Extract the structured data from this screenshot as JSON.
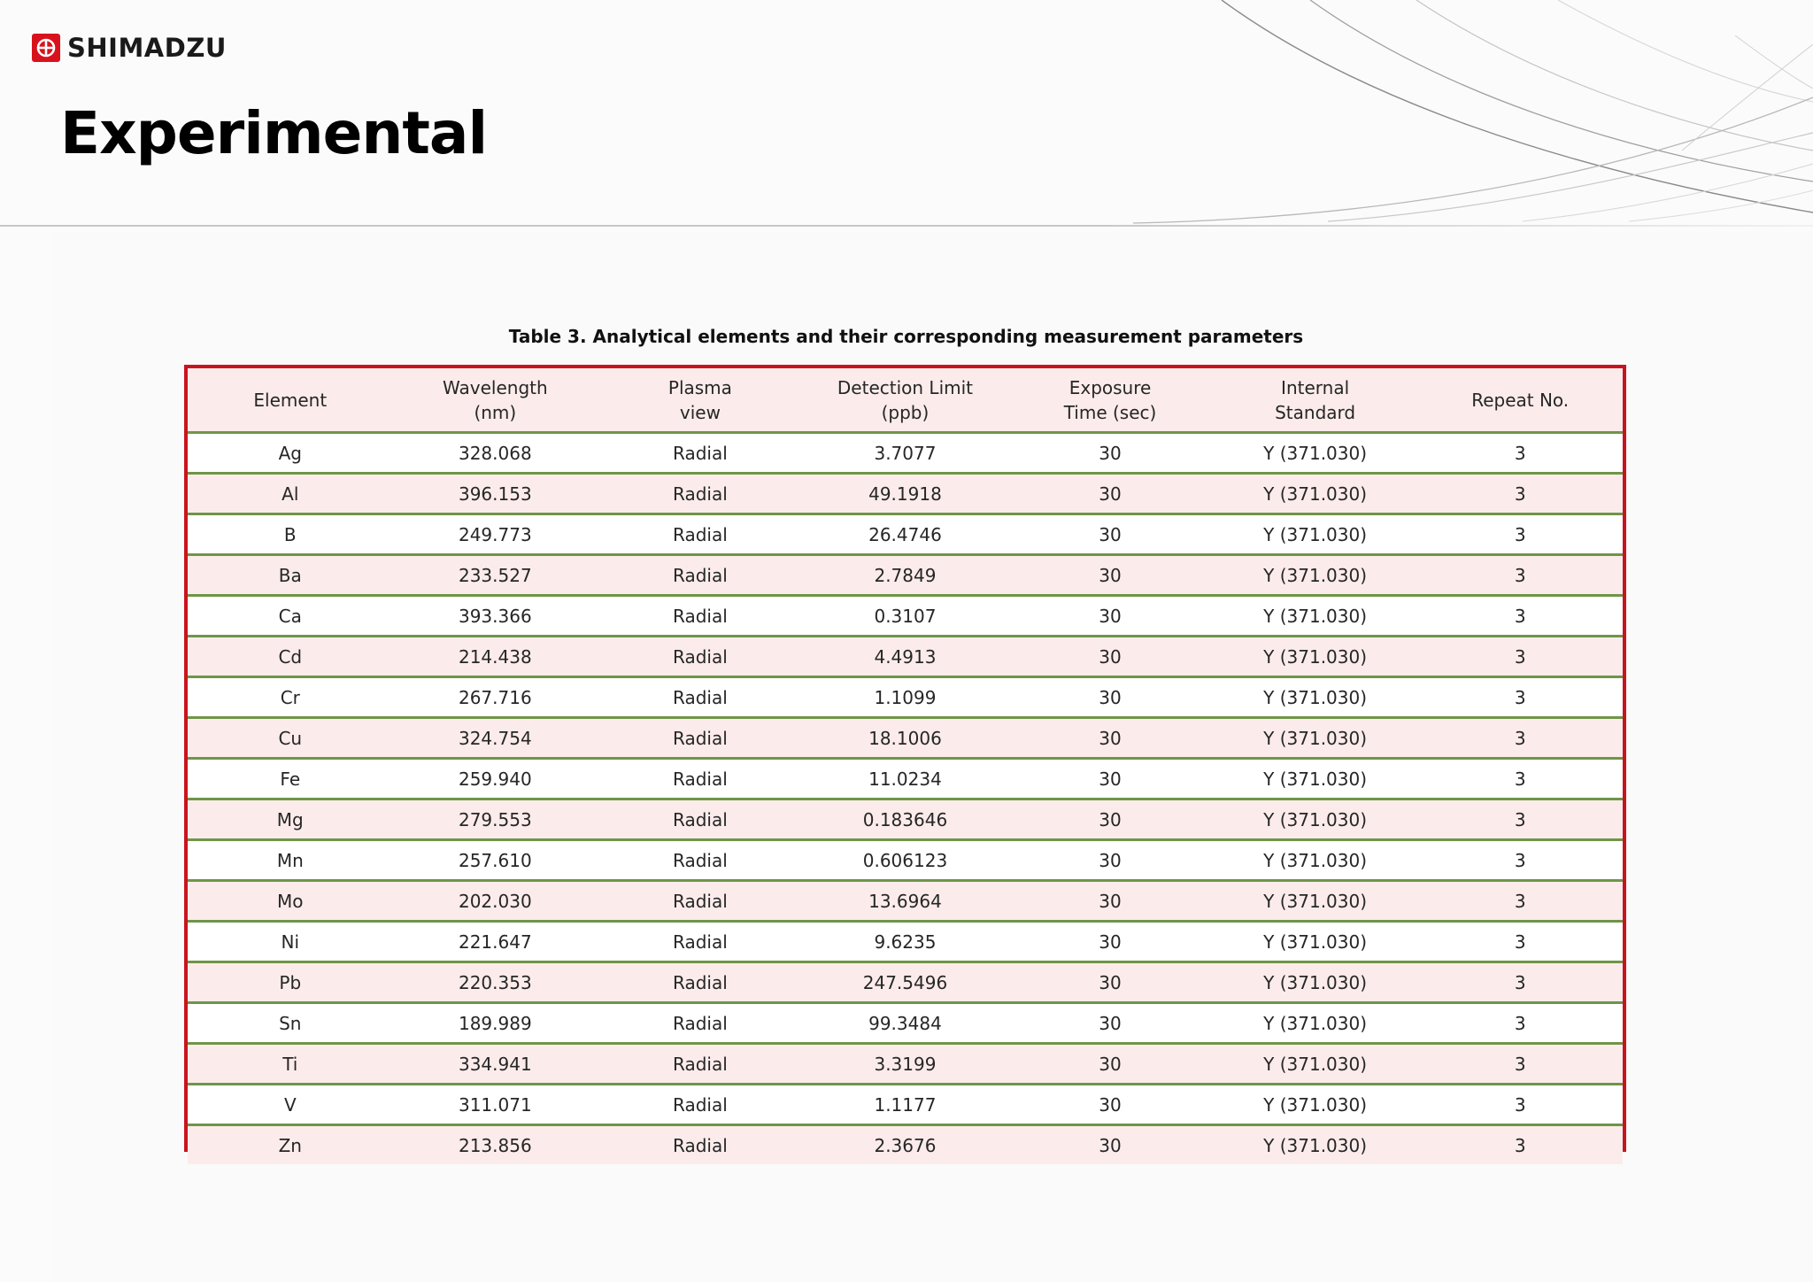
{
  "brand": {
    "name": "SHIMADZU",
    "logo_icon": "shimadzu-logo-icon",
    "color": "#d8121c"
  },
  "slide": {
    "title": "Experimental"
  },
  "table": {
    "caption": "Table 3. Analytical elements and their corresponding measurement parameters",
    "frame_color": "#c8141e",
    "row_rule_color": "#6f9548",
    "stripe_color": "#fbeceb",
    "columns": [
      "Element",
      "Wavelength\n(nm)",
      "Plasma\nview",
      "Detection Limit\n(ppb)",
      "Exposure\nTime (sec)",
      "Internal\nStandard",
      "Repeat No."
    ],
    "rows": [
      [
        "Ag",
        "328.068",
        "Radial",
        "3.7077",
        "30",
        "Y (371.030)",
        "3"
      ],
      [
        "Al",
        "396.153",
        "Radial",
        "49.1918",
        "30",
        "Y (371.030)",
        "3"
      ],
      [
        "B",
        "249.773",
        "Radial",
        "26.4746",
        "30",
        "Y (371.030)",
        "3"
      ],
      [
        "Ba",
        "233.527",
        "Radial",
        "2.7849",
        "30",
        "Y (371.030)",
        "3"
      ],
      [
        "Ca",
        "393.366",
        "Radial",
        "0.3107",
        "30",
        "Y (371.030)",
        "3"
      ],
      [
        "Cd",
        "214.438",
        "Radial",
        "4.4913",
        "30",
        "Y (371.030)",
        "3"
      ],
      [
        "Cr",
        "267.716",
        "Radial",
        "1.1099",
        "30",
        "Y (371.030)",
        "3"
      ],
      [
        "Cu",
        "324.754",
        "Radial",
        "18.1006",
        "30",
        "Y (371.030)",
        "3"
      ],
      [
        "Fe",
        "259.940",
        "Radial",
        "11.0234",
        "30",
        "Y (371.030)",
        "3"
      ],
      [
        "Mg",
        "279.553",
        "Radial",
        "0.183646",
        "30",
        "Y (371.030)",
        "3"
      ],
      [
        "Mn",
        "257.610",
        "Radial",
        "0.606123",
        "30",
        "Y (371.030)",
        "3"
      ],
      [
        "Mo",
        "202.030",
        "Radial",
        "13.6964",
        "30",
        "Y (371.030)",
        "3"
      ],
      [
        "Ni",
        "221.647",
        "Radial",
        "9.6235",
        "30",
        "Y (371.030)",
        "3"
      ],
      [
        "Pb",
        "220.353",
        "Radial",
        "247.5496",
        "30",
        "Y (371.030)",
        "3"
      ],
      [
        "Sn",
        "189.989",
        "Radial",
        "99.3484",
        "30",
        "Y (371.030)",
        "3"
      ],
      [
        "Ti",
        "334.941",
        "Radial",
        "3.3199",
        "30",
        "Y (371.030)",
        "3"
      ],
      [
        "V",
        "311.071",
        "Radial",
        "1.1177",
        "30",
        "Y (371.030)",
        "3"
      ],
      [
        "Zn",
        "213.856",
        "Radial",
        "2.3676",
        "30",
        "Y (371.030)",
        "3"
      ]
    ]
  }
}
